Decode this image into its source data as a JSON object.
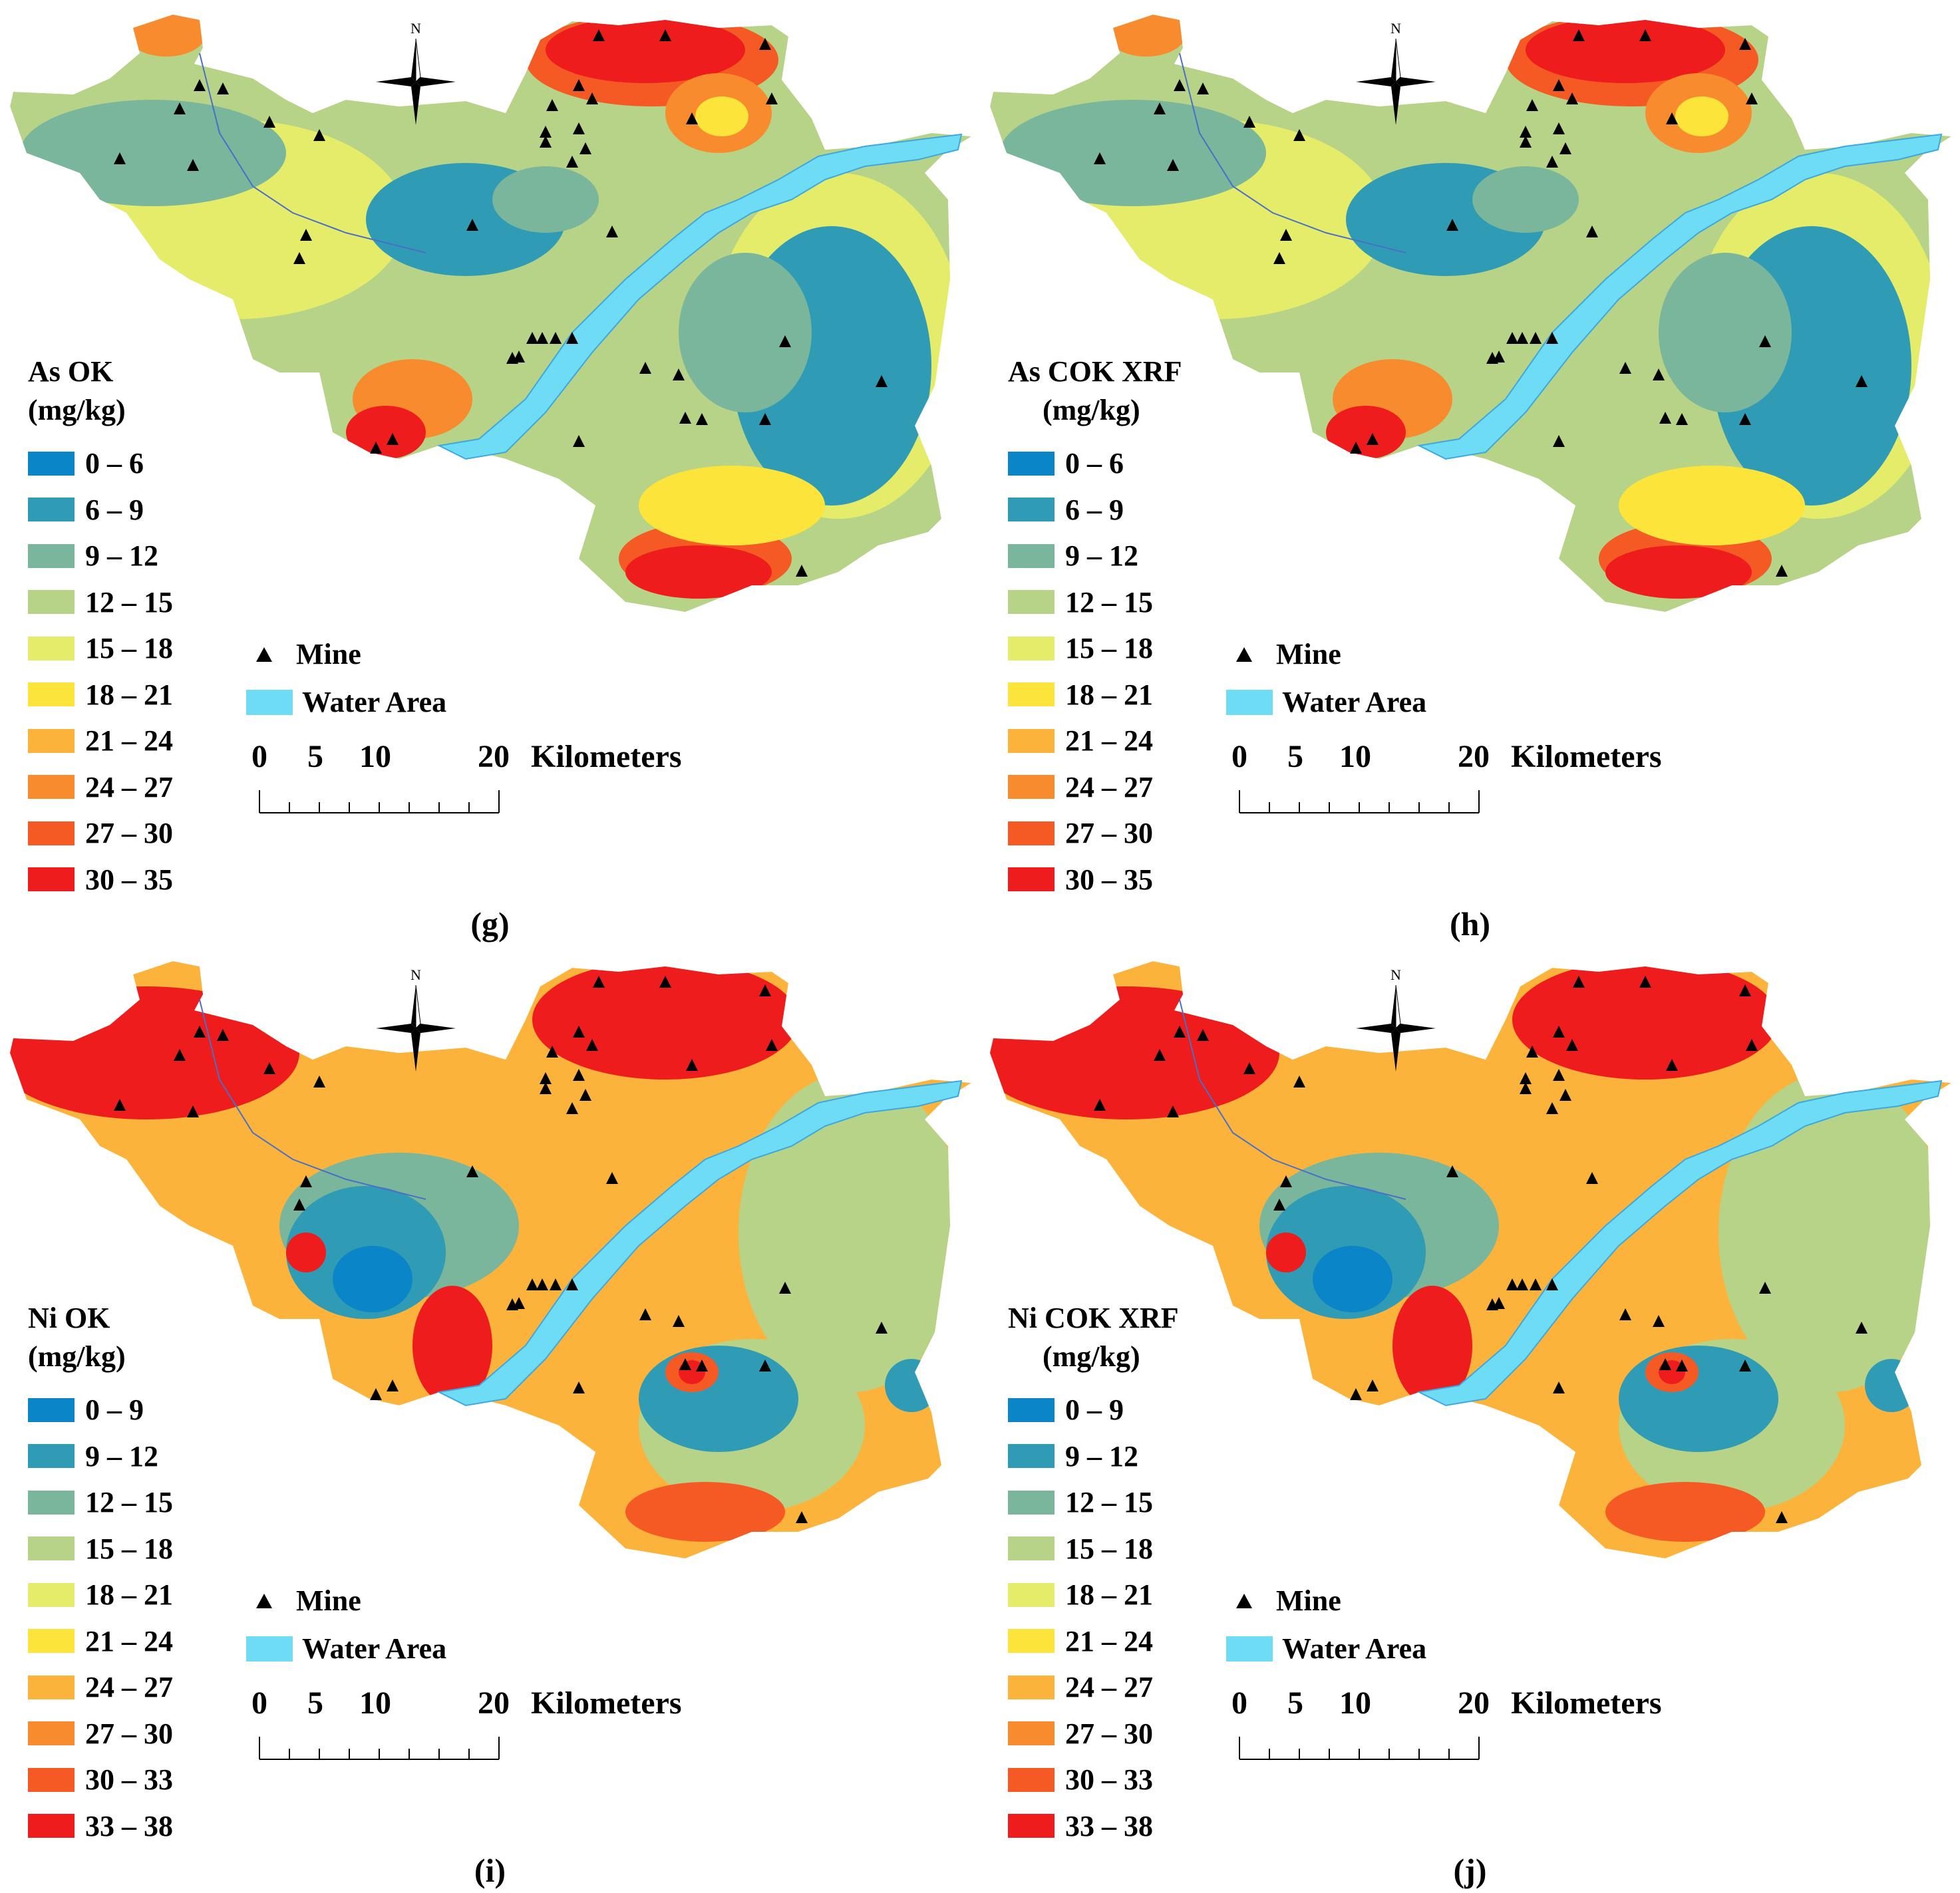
{
  "panels": [
    {
      "id": "g",
      "title_line1": "As OK",
      "title_line2": "(mg/kg)",
      "caption": "(g)",
      "legend": [
        "0 – 6",
        "6 – 9",
        "9 – 12",
        "12 – 15",
        "15 – 18",
        "18 – 21",
        "21 – 24",
        "24 – 27",
        "27 – 30",
        "30 – 35"
      ],
      "pattern": "as"
    },
    {
      "id": "h",
      "title_line1": "As COK XRF",
      "title_line2": "(mg/kg)",
      "caption": "(h)",
      "legend": [
        "0 – 6",
        "6 – 9",
        "9 – 12",
        "12 – 15",
        "15 – 18",
        "18 – 21",
        "21 – 24",
        "24 – 27",
        "27 – 30",
        "30 – 35"
      ],
      "pattern": "as"
    },
    {
      "id": "i",
      "title_line1": "Ni OK",
      "title_line2": "(mg/kg)",
      "caption": "(i)",
      "legend": [
        "0 – 9",
        "9 – 12",
        "12 – 15",
        "15 – 18",
        "18 – 21",
        "21 – 24",
        "24 – 27",
        "27 – 30",
        "30 – 33",
        "33 – 38"
      ],
      "pattern": "ni"
    },
    {
      "id": "j",
      "title_line1": "Ni COK XRF",
      "title_line2": "(mg/kg)",
      "caption": "(j)",
      "legend": [
        "0 – 9",
        "9 – 12",
        "12 – 15",
        "15 – 18",
        "18 – 21",
        "21 – 24",
        "24 – 27",
        "27 – 30",
        "30 – 33",
        "33 – 38"
      ],
      "pattern": "ni"
    }
  ],
  "legend_colors": [
    "#0a86c8",
    "#2f9bb5",
    "#79b69b",
    "#b6d387",
    "#e5ec6a",
    "#fde43a",
    "#fbb33c",
    "#f88b2e",
    "#f55a24",
    "#ee1c1c"
  ],
  "mine_label": "Mine",
  "water_label": "Water Area",
  "water_color": "#6fdcf5",
  "north_label": "N",
  "scale_labels": [
    "0",
    "5",
    "10",
    "20"
  ],
  "scale_unit": "Kilometers"
}
